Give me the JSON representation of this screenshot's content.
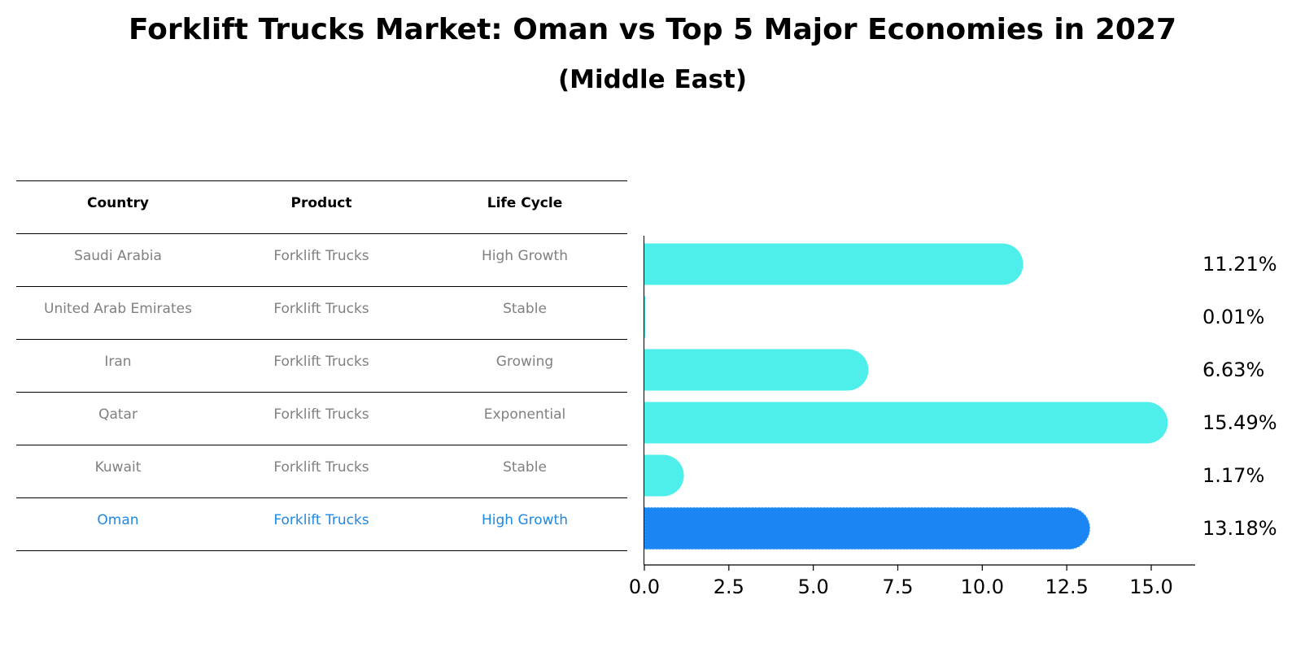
{
  "title": "Forklift Trucks Market: Oman vs Top 5 Major Economies in 2027",
  "subtitle": "(Middle East)",
  "table": {
    "headers": [
      "Country",
      "Product",
      "Life Cycle"
    ],
    "rows": [
      {
        "country": "Saudi Arabia",
        "product": "Forklift Trucks",
        "life_cycle": "High Growth",
        "highlight": false
      },
      {
        "country": "United Arab Emirates",
        "product": "Forklift Trucks",
        "life_cycle": "Stable",
        "highlight": false
      },
      {
        "country": "Iran",
        "product": "Forklift Trucks",
        "life_cycle": "Growing",
        "highlight": false
      },
      {
        "country": "Qatar",
        "product": "Forklift Trucks",
        "life_cycle": "Exponential",
        "highlight": false
      },
      {
        "country": "Kuwait",
        "product": "Forklift Trucks",
        "life_cycle": "Stable",
        "highlight": false
      },
      {
        "country": "Oman",
        "product": "Forklift Trucks",
        "life_cycle": "High Growth",
        "highlight": true
      }
    ]
  },
  "colors": {
    "bar": "#4eeeea",
    "highlight_bar": "#1a85f3",
    "highlight_text": "#1e88e5",
    "muted_text": "#808080"
  },
  "chart_data": {
    "type": "bar",
    "orientation": "horizontal",
    "categories": [
      "Saudi Arabia",
      "United Arab Emirates",
      "Iran",
      "Qatar",
      "Kuwait",
      "Oman"
    ],
    "values": [
      11.21,
      0.01,
      6.63,
      15.49,
      1.17,
      13.18
    ],
    "value_labels": [
      "11.21%",
      "0.01%",
      "6.63%",
      "15.49%",
      "1.17%",
      "13.18%"
    ],
    "highlight_category": "Oman",
    "xlim": [
      0,
      16.3
    ],
    "xticks": [
      0.0,
      2.5,
      5.0,
      7.5,
      10.0,
      12.5,
      15.0
    ],
    "xtick_labels": [
      "0.0",
      "2.5",
      "5.0",
      "7.5",
      "10.0",
      "12.5",
      "15.0"
    ],
    "xlabel": "",
    "ylabel": "",
    "grid": false
  }
}
